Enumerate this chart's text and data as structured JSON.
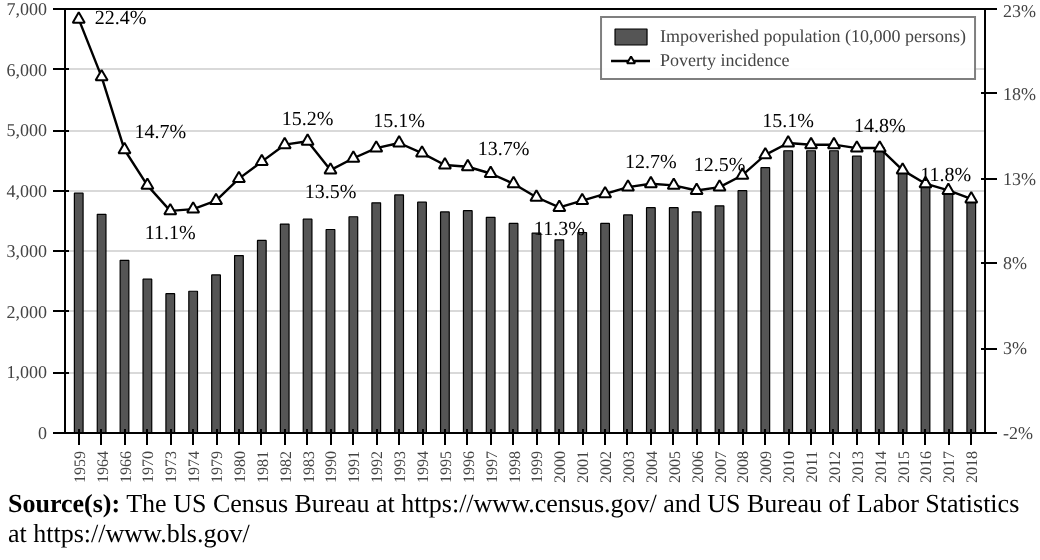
{
  "chart_data": {
    "type": "bar",
    "categories": [
      "1959",
      "1964",
      "1966",
      "1970",
      "1973",
      "1974",
      "1979",
      "1980",
      "1981",
      "1982",
      "1983",
      "1990",
      "1991",
      "1992",
      "1993",
      "1994",
      "1995",
      "1996",
      "1997",
      "1998",
      "1999",
      "2000",
      "2001",
      "2002",
      "2003",
      "2004",
      "2005",
      "2006",
      "2007",
      "2008",
      "2009",
      "2010",
      "2011",
      "2012",
      "2013",
      "2014",
      "2015",
      "2016",
      "2017",
      "2018"
    ],
    "series": [
      {
        "name": "Impoverished population (10,000 persons)",
        "color": "#555555",
        "values": [
          3960,
          3610,
          2850,
          2540,
          2300,
          2340,
          2610,
          2930,
          3180,
          3450,
          3530,
          3360,
          3570,
          3800,
          3930,
          3810,
          3650,
          3670,
          3560,
          3460,
          3300,
          3190,
          3310,
          3460,
          3600,
          3720,
          3720,
          3650,
          3750,
          4000,
          4380,
          4660,
          4660,
          4660,
          4570,
          4710,
          4310,
          4120,
          4000,
          3860
        ]
      },
      {
        "name": "Poverty incidence",
        "type": "line",
        "axis": "y2",
        "color": "#000000",
        "marker": "triangle",
        "line_style": "solid",
        "values": [
          22.4,
          19.0,
          14.7,
          12.6,
          11.1,
          11.2,
          11.7,
          13.0,
          14.0,
          15.0,
          15.2,
          13.5,
          14.2,
          14.8,
          15.1,
          14.5,
          13.8,
          13.7,
          13.3,
          12.7,
          11.9,
          11.3,
          11.7,
          12.1,
          12.5,
          12.7,
          12.6,
          12.3,
          12.5,
          13.2,
          14.4,
          15.1,
          15.0,
          15.0,
          14.8,
          14.8,
          13.5,
          12.7,
          12.3,
          11.8
        ],
        "value_labels": [
          "22.4%",
          null,
          "14.7%",
          null,
          "11.1%",
          null,
          null,
          null,
          null,
          null,
          "15.2%",
          "13.5%",
          null,
          null,
          "15.1%",
          null,
          null,
          "13.7%",
          null,
          null,
          null,
          "11.3%",
          null,
          null,
          null,
          "12.7%",
          null,
          null,
          "12.5%",
          null,
          null,
          "15.1%",
          null,
          null,
          null,
          "14.8%",
          null,
          null,
          null,
          "11.8%"
        ]
      }
    ],
    "ylim": [
      0,
      7000
    ],
    "yticks": [
      0,
      {
        "value": 1000,
        "label": "1,000"
      },
      {
        "value": 2000,
        "label": "2,000"
      },
      {
        "value": 3000,
        "label": "3,000"
      },
      {
        "value": 4000,
        "label": "4,000"
      },
      {
        "value": 5000,
        "label": "5,000"
      },
      {
        "value": 6000,
        "label": "6,000"
      },
      {
        "value": 7000,
        "label": "7,000"
      }
    ],
    "y2lim": [
      -2,
      23
    ],
    "y2ticks": [
      {
        "value": -2,
        "label": "-2%"
      },
      {
        "value": 3,
        "label": "3%"
      },
      {
        "value": 8,
        "label": "8%"
      },
      {
        "value": 13,
        "label": "13%"
      },
      {
        "value": 18,
        "label": "18%"
      },
      {
        "value": 23,
        "label": "23%"
      }
    ],
    "grid": "y",
    "legend": "top right",
    "annotations": [
      "Source(s): The US Census Bureau at https://www.census.gov/ and US Bureau of Labor Statistics at https://www.bls.gov/"
    ]
  }
}
